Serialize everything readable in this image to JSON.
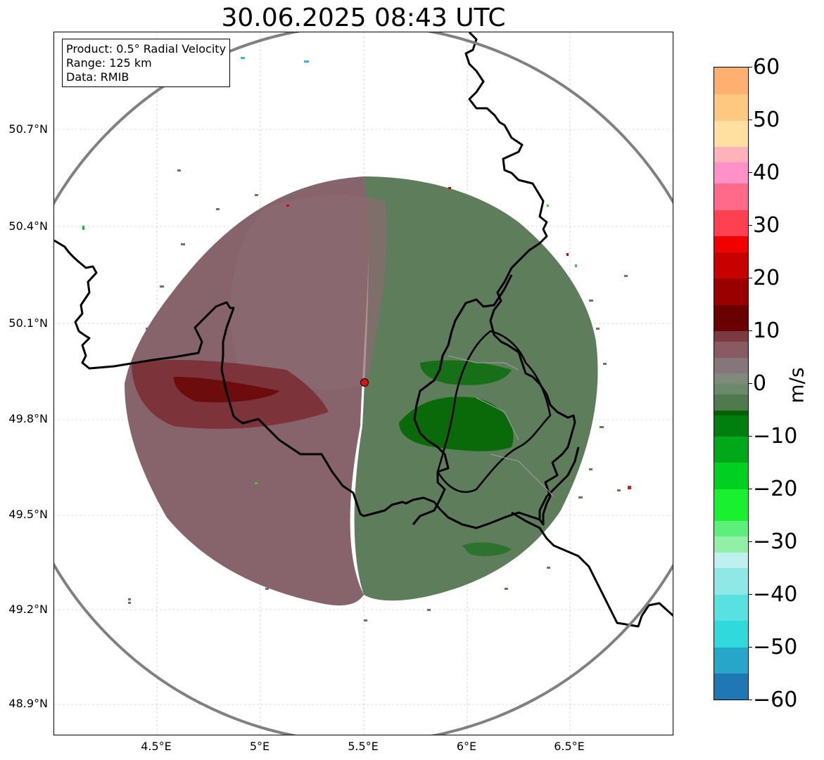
{
  "title": "30.06.2025 08:43 UTC",
  "info": {
    "product": "Product: 0.5° Radial Velocity",
    "range": "Range: 125 km",
    "data": "Data: RMIB"
  },
  "axes": {
    "lat_ticks": [
      "50.7°N",
      "50.4°N",
      "50.1°N",
      "49.8°N",
      "49.5°N",
      "49.2°N",
      "48.9°N"
    ],
    "lon_ticks": [
      "4.5°E",
      "5°E",
      "5.5°E",
      "6°E",
      "6.5°E"
    ]
  },
  "colorbar": {
    "unit": "m/s",
    "min": -60,
    "max": 60,
    "ticks": [
      "60",
      "50",
      "40",
      "30",
      "20",
      "10",
      "0",
      "−10",
      "−20",
      "−30",
      "−40",
      "−50",
      "−60"
    ],
    "stops": [
      {
        "v": -60,
        "color": "#1f77b4"
      },
      {
        "v": -55,
        "color": "#26a6c8"
      },
      {
        "v": -50,
        "color": "#2fd9dc"
      },
      {
        "v": -45,
        "color": "#58e1e1"
      },
      {
        "v": -40,
        "color": "#8fe8e6"
      },
      {
        "v": -35,
        "color": "#bdf0ef"
      },
      {
        "v": -32,
        "color": "#92f0a6"
      },
      {
        "v": -29,
        "color": "#5cf07a"
      },
      {
        "v": -26,
        "color": "#18f030"
      },
      {
        "v": -20,
        "color": "#00d020"
      },
      {
        "v": -15,
        "color": "#00a81a"
      },
      {
        "v": -10,
        "color": "#007f0f"
      },
      {
        "v": -6,
        "color": "#006300"
      },
      {
        "v": -5,
        "color": "#4e7a4e"
      },
      {
        "v": -2,
        "color": "#6b8a6b"
      },
      {
        "v": 0,
        "color": "#7f8a7a"
      },
      {
        "v": 2,
        "color": "#86767c"
      },
      {
        "v": 5,
        "color": "#8a5a62"
      },
      {
        "v": 8,
        "color": "#7a3a40"
      },
      {
        "v": 10,
        "color": "#6a0000"
      },
      {
        "v": 15,
        "color": "#9a0000"
      },
      {
        "v": 20,
        "color": "#c80000"
      },
      {
        "v": 25,
        "color": "#f00000"
      },
      {
        "v": 28,
        "color": "#ff4050"
      },
      {
        "v": 33,
        "color": "#ff6a8a"
      },
      {
        "v": 38,
        "color": "#ff90c8"
      },
      {
        "v": 42,
        "color": "#ffb2b8"
      },
      {
        "v": 45,
        "color": "#ffe0a0"
      },
      {
        "v": 50,
        "color": "#ffc880"
      },
      {
        "v": 55,
        "color": "#ffb070"
      },
      {
        "v": 60,
        "color": "#ffa060"
      }
    ]
  },
  "map": {
    "radar_site": "radar-site",
    "colors": {
      "inbound": "#5b7a58",
      "inbound_strong": "#0a6a0a",
      "outbound": "#8a6670",
      "outbound_strong": "#7a1010",
      "range_ring": "#808080",
      "border": "#000000",
      "site_fill": "#dd1111"
    }
  }
}
